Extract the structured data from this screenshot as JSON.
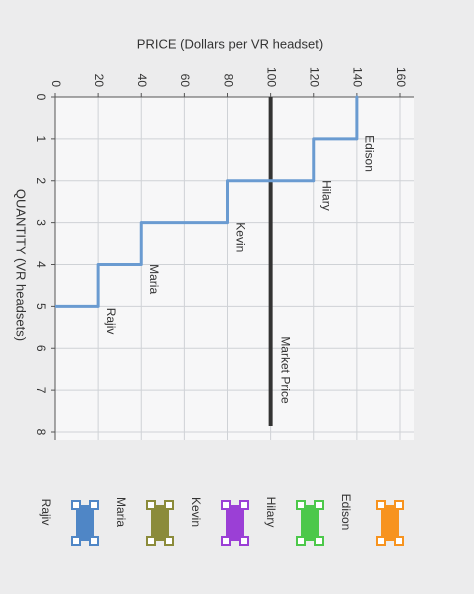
{
  "chart_data": {
    "type": "step",
    "xlabel": "QUANTITY (VR headsets)",
    "ylabel": "PRICE (Dollars per VR headset)",
    "xlim": [
      0,
      8
    ],
    "xticks": [
      0,
      1,
      2,
      3,
      4,
      5,
      6,
      7,
      8
    ],
    "ylim": [
      0,
      160
    ],
    "yticks": [
      0,
      20,
      40,
      60,
      80,
      100,
      120,
      140,
      160
    ],
    "grid": true,
    "categories": [
      "Edison",
      "Hilary",
      "Kevin",
      "Maria",
      "Rajiv"
    ],
    "values": [
      140,
      120,
      80,
      40,
      20
    ],
    "color": "#6a9bd1",
    "market_price": {
      "label": "Market Price",
      "value": 100,
      "color": "#333333"
    },
    "legend": {
      "items": [
        {
          "name": "Edison",
          "color": "#f7931e"
        },
        {
          "name": "Hilary",
          "color": "#4cc84a"
        },
        {
          "name": "Kevin",
          "color": "#9b3fd6"
        },
        {
          "name": "Maria",
          "color": "#8b8b3a"
        },
        {
          "name": "Rajiv",
          "color": "#4f86c6"
        }
      ]
    }
  }
}
